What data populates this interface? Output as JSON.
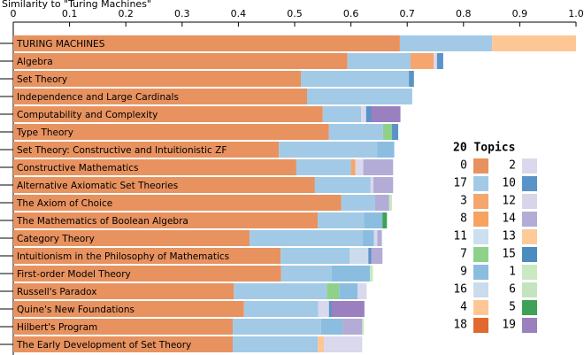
{
  "chart_data": {
    "type": "stacked-bar",
    "orientation": "horizontal",
    "title": "Similarity to \"Turing Machines\"",
    "xlim": [
      0,
      1
    ],
    "xticks": [
      0,
      0.1,
      0.2,
      0.3,
      0.4,
      0.5,
      0.6,
      0.7,
      0.8,
      0.9,
      {
        "value": 1,
        "label": "1.0"
      }
    ],
    "legend_title": "20 Topics",
    "categories": [
      "TURING MACHINES",
      "Algebra",
      "Set Theory",
      "Independence and Large Cardinals",
      "Computability and Complexity",
      "Type Theory",
      "Set Theory: Constructive and Intuitionistic ZF",
      "Constructive Mathematics",
      "Alternative Axiomatic Set Theories",
      "The Axiom of Choice",
      "The Mathematics of Boolean Algebra",
      "Category Theory",
      "Intuitionism in the Philosophy of Mathematics",
      "First-order Model Theory",
      "Russell's Paradox",
      "Quine's New Foundations",
      "Hilbert's Program",
      "The Early Development of Set Theory"
    ],
    "series": [
      {
        "name": "0",
        "color": "#e8925f",
        "values": [
          0.687,
          0.594,
          0.511,
          0.522,
          0.55,
          0.561,
          0.472,
          0.503,
          0.536,
          0.583,
          0.541,
          0.42,
          0.475,
          0.476,
          0.392,
          0.41,
          0.39,
          0.39
        ]
      },
      {
        "name": "17",
        "color": "#a2cae6",
        "values": [
          0.164,
          0.112,
          0.192,
          0.187,
          0.068,
          0.096,
          0.175,
          0.097,
          0.099,
          0.06,
          0.082,
          0.201,
          0.123,
          0.09,
          0.165,
          0.132,
          0.157,
          0.151
        ]
      },
      {
        "name": "3",
        "color": "#f5a66c",
        "values": [
          0,
          0.041,
          0,
          0,
          0,
          0,
          0,
          0.008,
          0,
          0,
          0,
          0,
          0,
          0,
          0,
          0,
          0,
          0
        ]
      },
      {
        "name": "8",
        "color": "#f7a260",
        "values": [
          0,
          0,
          0,
          0,
          0,
          0,
          0,
          0,
          0,
          0,
          0,
          0,
          0,
          0,
          0,
          0,
          0,
          0
        ]
      },
      {
        "name": "11",
        "color": "#cadff0",
        "values": [
          0,
          0,
          0,
          0,
          0,
          0,
          0,
          0,
          0,
          0,
          0,
          0,
          0,
          0,
          0,
          0,
          0,
          0
        ]
      },
      {
        "name": "7",
        "color": "#8fd18a",
        "values": [
          0,
          0,
          0,
          0,
          0,
          0.016,
          0,
          0,
          0,
          0,
          0,
          0,
          0,
          0,
          0.022,
          0,
          0,
          0
        ]
      },
      {
        "name": "9",
        "color": "#8bbde0",
        "values": [
          0,
          0,
          0,
          0,
          0,
          0,
          0.03,
          0,
          0,
          0,
          0.033,
          0.02,
          0,
          0.068,
          0.033,
          0,
          0.038,
          0
        ]
      },
      {
        "name": "16",
        "color": "#c9dbec",
        "values": [
          0,
          0,
          0,
          0,
          0,
          0,
          0,
          0,
          0,
          0,
          0,
          0,
          0.033,
          0,
          0,
          0,
          0,
          0
        ]
      },
      {
        "name": "4",
        "color": "#fdc795",
        "values": [
          0.149,
          0,
          0,
          0,
          0,
          0,
          0,
          0,
          0,
          0,
          0,
          0,
          0,
          0,
          0,
          0,
          0,
          0.011
        ]
      },
      {
        "name": "18",
        "color": "#e0692f",
        "values": [
          0,
          0,
          0,
          0,
          0,
          0,
          0,
          0,
          0,
          0,
          0,
          0,
          0,
          0,
          0,
          0,
          0,
          0
        ]
      },
      {
        "name": "2",
        "color": "#dad8ec",
        "values": [
          0,
          0.006,
          0,
          0,
          0.009,
          0,
          0,
          0.014,
          0.005,
          0,
          0,
          0.006,
          0,
          0,
          0.016,
          0.019,
          0,
          0.068
        ]
      },
      {
        "name": "10",
        "color": "#5a93c8",
        "values": [
          0,
          0.011,
          0.009,
          0,
          0.009,
          0.011,
          0,
          0,
          0,
          0,
          0,
          0,
          0.005,
          0,
          0,
          0.005,
          0,
          0
        ]
      },
      {
        "name": "12",
        "color": "#d7d5ea",
        "values": [
          0,
          0,
          0,
          0,
          0,
          0,
          0,
          0,
          0,
          0,
          0,
          0,
          0,
          0,
          0,
          0,
          0,
          0
        ]
      },
      {
        "name": "14",
        "color": "#b2acd6",
        "values": [
          0,
          0,
          0,
          0,
          0,
          0,
          0,
          0.053,
          0.035,
          0.025,
          0,
          0.008,
          0.02,
          0,
          0,
          0,
          0.035,
          0
        ]
      },
      {
        "name": "13",
        "color": "#fdca9a",
        "values": [
          0,
          0,
          0,
          0,
          0,
          0,
          0,
          0,
          0,
          0,
          0,
          0,
          0,
          0,
          0,
          0,
          0,
          0
        ]
      },
      {
        "name": "15",
        "color": "#4c8bc0",
        "values": [
          0,
          0,
          0,
          0,
          0,
          0,
          0,
          0,
          0,
          0,
          0,
          0,
          0,
          0,
          0,
          0,
          0,
          0
        ]
      },
      {
        "name": "1",
        "color": "#c8e9c2",
        "values": [
          0,
          0,
          0,
          0,
          0,
          0,
          0,
          0,
          0,
          0.005,
          0,
          0,
          0,
          0.005,
          0,
          0,
          0.003,
          0
        ]
      },
      {
        "name": "6",
        "color": "#c4e4c0",
        "values": [
          0,
          0,
          0,
          0,
          0,
          0,
          0,
          0,
          0,
          0,
          0,
          0,
          0,
          0,
          0,
          0,
          0,
          0
        ]
      },
      {
        "name": "5",
        "color": "#3fa155",
        "values": [
          0,
          0,
          0,
          0,
          0,
          0,
          0,
          0,
          0,
          0,
          0.008,
          0,
          0,
          0,
          0,
          0,
          0,
          0
        ]
      },
      {
        "name": "19",
        "color": "#9a80bf",
        "values": [
          0,
          0,
          0,
          0,
          0.052,
          0,
          0,
          0,
          0,
          0,
          0,
          0,
          0,
          0,
          0,
          0.058,
          0,
          0
        ]
      }
    ]
  }
}
